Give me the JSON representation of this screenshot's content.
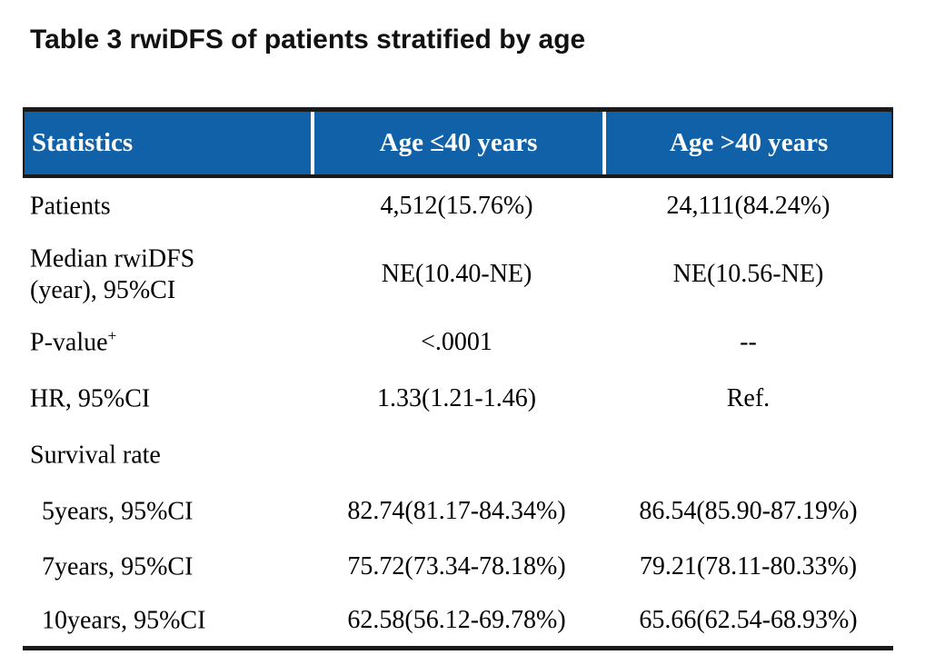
{
  "title": "Table 3 rwiDFS of patients stratified by age",
  "colors": {
    "header_background": "#1161a8",
    "header_text": "#ffffff",
    "border": "#1a1a1a",
    "body_text": "#000000",
    "page_background": "#ffffff"
  },
  "table": {
    "columns": [
      "Statistics",
      "Age ≤40 years",
      "Age >40 years"
    ],
    "rows": [
      {
        "label": "Patients",
        "col1": "4,512(15.76%)",
        "col2": "24,111(84.24%)"
      },
      {
        "label": "Median rwiDFS",
        "label2": "(year), 95%CI",
        "col1": "NE(10.40-NE)",
        "col2": "NE(10.56-NE)"
      },
      {
        "label": "P-value",
        "sup": "+",
        "col1": "<.0001",
        "col2": "--"
      },
      {
        "label": "HR, 95%CI",
        "col1": "1.33(1.21-1.46)",
        "col2": "Ref."
      },
      {
        "label": "Survival rate",
        "col1": "",
        "col2": ""
      },
      {
        "label": "5years, 95%CI",
        "col1": "82.74(81.17-84.34%)",
        "col2": "86.54(85.90-87.19%)"
      },
      {
        "label": "7years, 95%CI",
        "col1": "75.72(73.34-78.18%)",
        "col2": "79.21(78.11-80.33%)"
      },
      {
        "label": "10years, 95%CI",
        "col1": "62.58(56.12-69.78%)",
        "col2": "65.66(62.54-68.93%)"
      }
    ]
  }
}
